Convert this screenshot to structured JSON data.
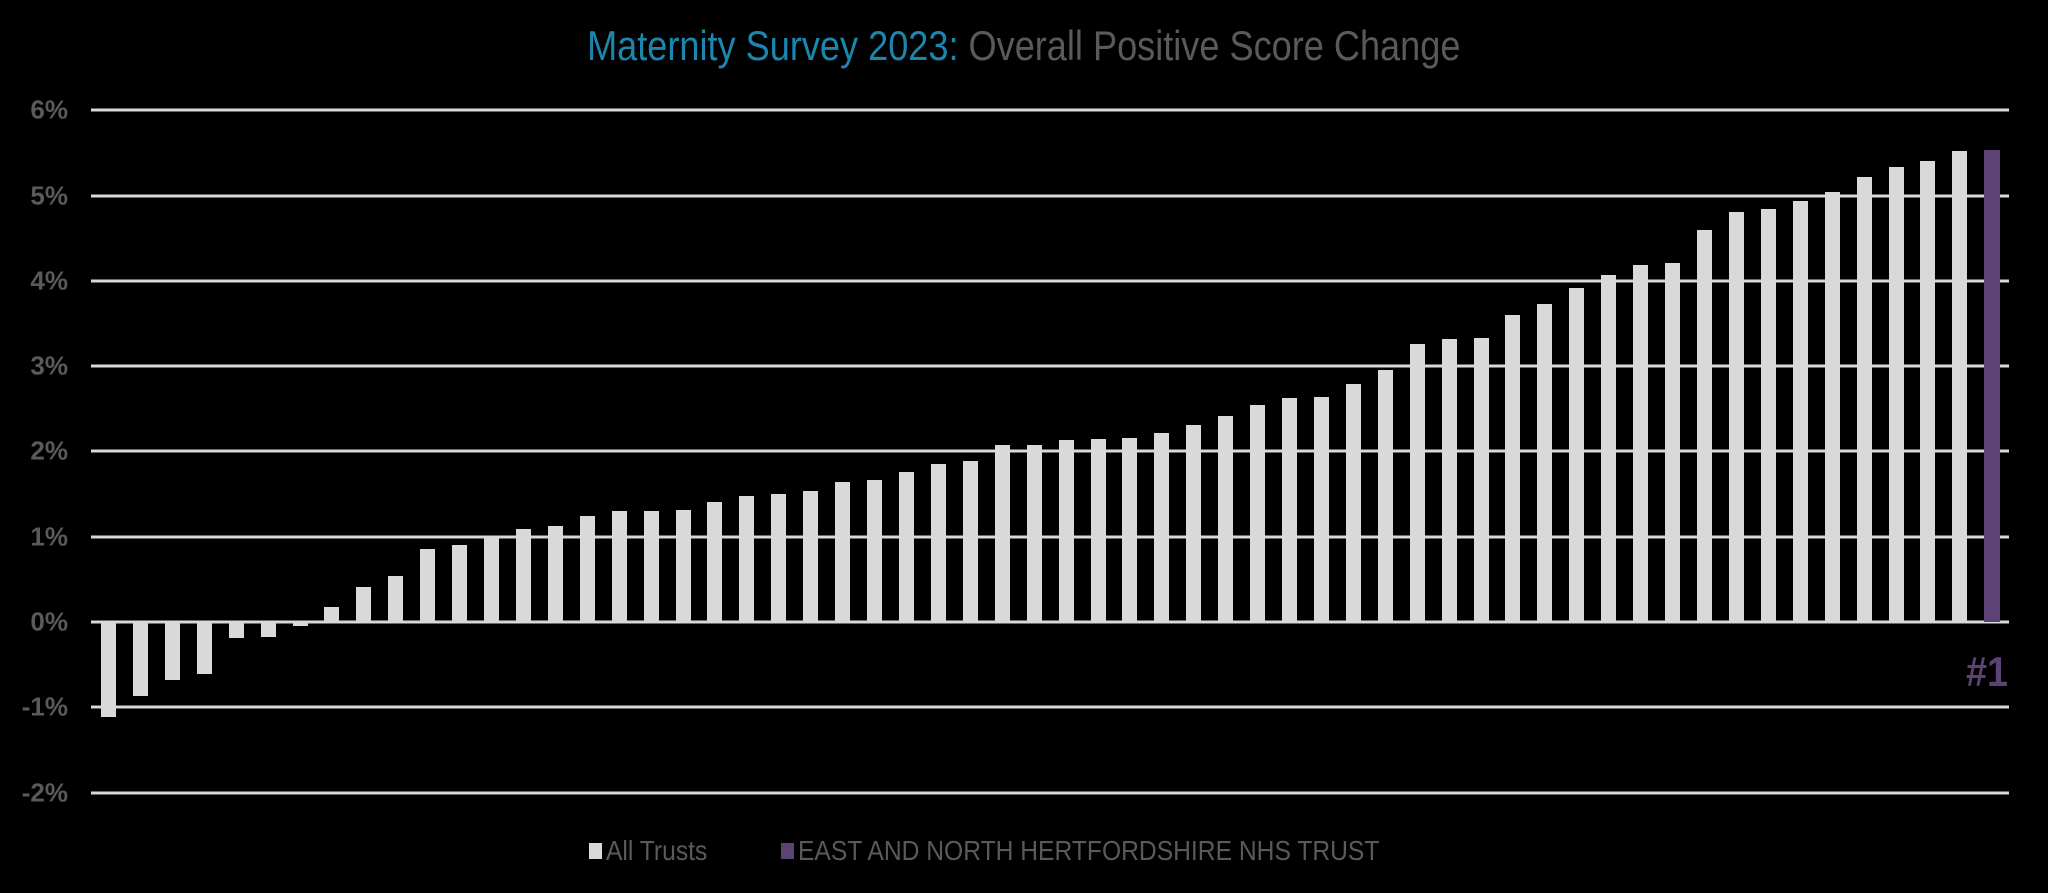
{
  "title": {
    "part1": "Maternity Survey 2023:",
    "part2": " Overall Positive Score Change",
    "part1_color": "#1b87ae",
    "part2_color": "#5a5a5a"
  },
  "rank_label": "#1",
  "legend": [
    {
      "label": "All Trusts",
      "color": "#d9d9d9"
    },
    {
      "label": "EAST AND NORTH HERTFORDSHIRE NHS TRUST",
      "color": "#5c4275"
    }
  ],
  "chart_data": {
    "type": "bar",
    "title": "Maternity Survey 2023: Overall Positive Score Change",
    "xlabel": "",
    "ylabel": "",
    "ylim": [
      -2,
      6
    ],
    "yticks": [
      "-2%",
      "-1%",
      "0%",
      "1%",
      "2%",
      "3%",
      "4%",
      "5%",
      "6%"
    ],
    "ytick_values": [
      -2,
      -1,
      0,
      1,
      2,
      3,
      4,
      5,
      6
    ],
    "grid": true,
    "legend_position": "bottom",
    "highlight_index": 59,
    "highlight_label": "#1",
    "series": [
      {
        "name": "All Trusts",
        "color": "#d9d9d9"
      },
      {
        "name": "EAST AND NORTH HERTFORDSHIRE NHS TRUST",
        "color": "#5c4275"
      }
    ],
    "values": [
      -1.11,
      -0.87,
      -0.68,
      -0.61,
      -0.19,
      -0.18,
      -0.05,
      0.18,
      0.41,
      0.54,
      0.85,
      0.9,
      0.99,
      1.09,
      1.13,
      1.24,
      1.3,
      1.3,
      1.31,
      1.41,
      1.48,
      1.5,
      1.54,
      1.64,
      1.67,
      1.76,
      1.85,
      1.89,
      2.07,
      2.07,
      2.13,
      2.15,
      2.16,
      2.22,
      2.31,
      2.41,
      2.54,
      2.63,
      2.64,
      2.79,
      2.95,
      3.26,
      3.32,
      3.33,
      3.6,
      3.73,
      3.91,
      4.07,
      4.19,
      4.21,
      4.6,
      4.81,
      4.84,
      4.93,
      5.04,
      5.22,
      5.33,
      5.41,
      5.52,
      5.53
    ]
  }
}
